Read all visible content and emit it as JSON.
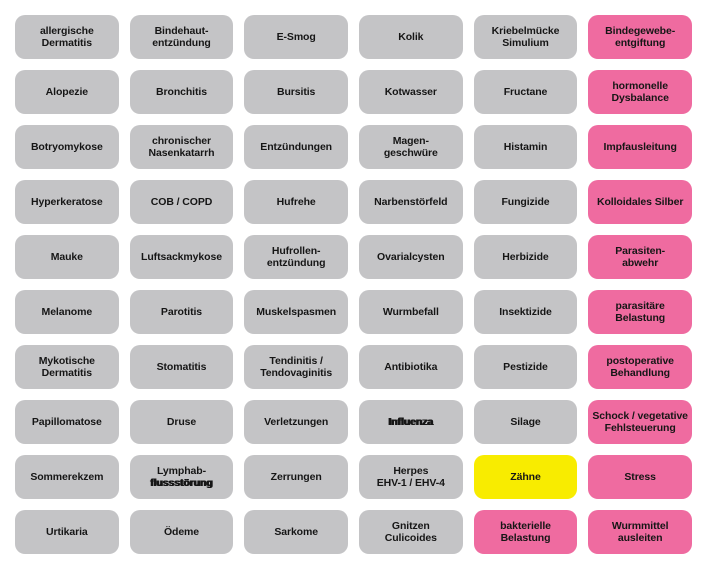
{
  "colors": {
    "gray": "#c4c4c6",
    "pink": "#ef6ba0",
    "yellow": "#f8ec00",
    "text": "#161616",
    "background": "#ffffff"
  },
  "grid": {
    "columns": 6,
    "rows": 10,
    "tiles": [
      {
        "label": "allergische\nDermatitis",
        "color": "gray"
      },
      {
        "label": "Bindehaut-\nentzündung",
        "color": "gray"
      },
      {
        "label": "E-Smog",
        "color": "gray"
      },
      {
        "label": "Kolik",
        "color": "gray"
      },
      {
        "label": "Kriebelmücke\nSimulium",
        "color": "gray"
      },
      {
        "label": "Bindegewebe-\nentgiftung",
        "color": "pink"
      },
      {
        "label": "Alopezie",
        "color": "gray"
      },
      {
        "label": "Bronchitis",
        "color": "gray"
      },
      {
        "label": "Bursitis",
        "color": "gray"
      },
      {
        "label": "Kotwasser",
        "color": "gray"
      },
      {
        "label": "Fructane",
        "color": "gray"
      },
      {
        "label": "hormonelle\nDysbalance",
        "color": "pink"
      },
      {
        "label": "Botryomykose",
        "color": "gray"
      },
      {
        "label": "chronischer\nNasenkatarrh",
        "color": "gray"
      },
      {
        "label": "Entzündungen",
        "color": "gray"
      },
      {
        "label": "Magen-\ngeschwüre",
        "color": "gray"
      },
      {
        "label": "Histamin",
        "color": "gray"
      },
      {
        "label": "Impfausleitung",
        "color": "pink"
      },
      {
        "label": "Hyperkeratose",
        "color": "gray"
      },
      {
        "label": "COB / COPD",
        "color": "gray"
      },
      {
        "label": "Hufrehe",
        "color": "gray"
      },
      {
        "label": "Narbenstörfeld",
        "color": "gray"
      },
      {
        "label": "Fungizide",
        "color": "gray"
      },
      {
        "label": "Kolloidales Silber",
        "color": "pink"
      },
      {
        "label": "Mauke",
        "color": "gray"
      },
      {
        "label": "Luftsackmykose",
        "color": "gray"
      },
      {
        "label": "Hufrollen-\nentzündung",
        "color": "gray"
      },
      {
        "label": "Ovarialcysten",
        "color": "gray"
      },
      {
        "label": "Herbizide",
        "color": "gray"
      },
      {
        "label": "Parasiten-\nabwehr",
        "color": "pink"
      },
      {
        "label": "Melanome",
        "color": "gray"
      },
      {
        "label": "Parotitis",
        "color": "gray"
      },
      {
        "label": "Muskelspasmen",
        "color": "gray"
      },
      {
        "label": "Wurmbefall",
        "color": "gray"
      },
      {
        "label": "Insektizide",
        "color": "gray"
      },
      {
        "label": "parasitäre\nBelastung",
        "color": "pink"
      },
      {
        "label": "Mykotische\nDermatitis",
        "color": "gray"
      },
      {
        "label": "Stomatitis",
        "color": "gray"
      },
      {
        "label": "Tendinitis /\nTendovaginitis",
        "color": "gray"
      },
      {
        "label": "Antibiotika",
        "color": "gray"
      },
      {
        "label": "Pestizide",
        "color": "gray"
      },
      {
        "label": "postoperative\nBehandlung",
        "color": "pink"
      },
      {
        "label": "Papillomatose",
        "color": "gray"
      },
      {
        "label": "Druse",
        "color": "gray"
      },
      {
        "label": "Verletzungen",
        "color": "gray"
      },
      {
        "label": "Influenza",
        "color": "gray",
        "heavy": true
      },
      {
        "label": "Silage",
        "color": "gray"
      },
      {
        "label": "Schock / vegetative\nFehlsteuerung",
        "color": "pink"
      },
      {
        "label": "Sommerekzem",
        "color": "gray"
      },
      {
        "label": "Lymphab-\nflussstörung",
        "color": "gray",
        "heavy_line": 1
      },
      {
        "label": "Zerrungen",
        "color": "gray"
      },
      {
        "label": "Herpes\nEHV-1 / EHV-4",
        "color": "gray"
      },
      {
        "label": "Zähne",
        "color": "yellow"
      },
      {
        "label": "Stress",
        "color": "pink"
      },
      {
        "label": "Urtikaria",
        "color": "gray"
      },
      {
        "label": "Ödeme",
        "color": "gray"
      },
      {
        "label": "Sarkome",
        "color": "gray"
      },
      {
        "label": "Gnitzen\nCulicoides",
        "color": "gray"
      },
      {
        "label": "bakterielle\nBelastung",
        "color": "pink"
      },
      {
        "label": "Wurmmittel\nausleiten",
        "color": "pink"
      }
    ]
  }
}
